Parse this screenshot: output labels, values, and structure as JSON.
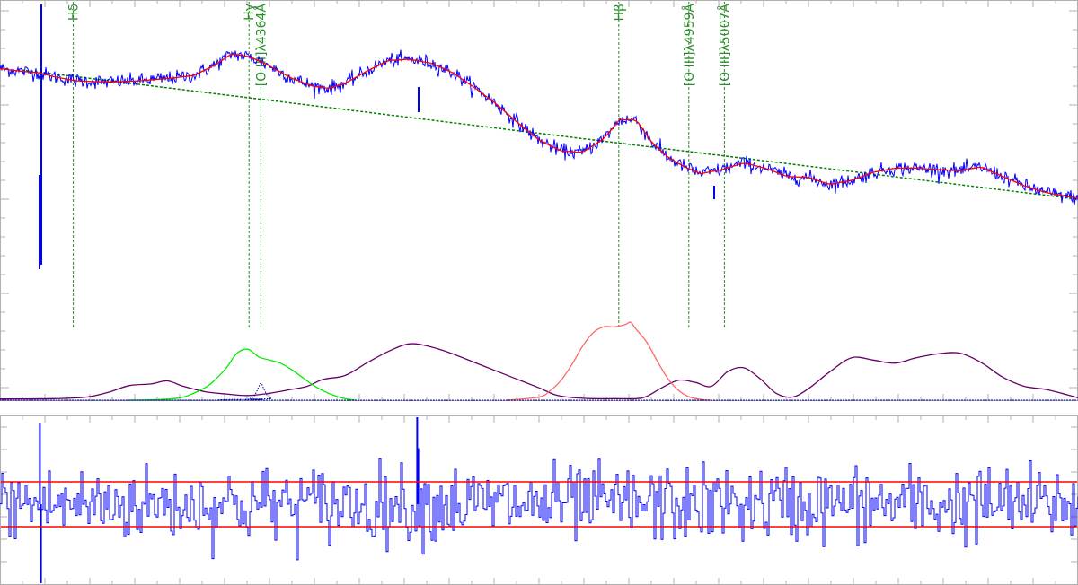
{
  "colors": {
    "observed": "#0000ff",
    "model": "#ff0000",
    "powerlaw": "#007f00",
    "annotation": "#2e8b2e",
    "feii": "#660066",
    "hgamma_broad": "#00ee00",
    "hbeta_broad": "#ff6666",
    "narrow": "#0000aa",
    "residual_band": "#ff0000",
    "axis": "#b0b0b0"
  },
  "chart_data": [
    {
      "type": "line",
      "panel": "spectrum",
      "grid": false,
      "x_range": [
        0,
        100
      ],
      "y_range": [
        0,
        100
      ],
      "annotations": [
        {
          "label": "Hδ",
          "x": 6.8
        },
        {
          "label": "Hγ",
          "x": 23.1
        },
        {
          "label": "[O III]λ4364Å",
          "x": 24.2
        },
        {
          "label": "Hβ",
          "x": 57.4
        },
        {
          "label": "[O III]λ4959Å",
          "x": 63.9
        },
        {
          "label": "[O III]λ5007Å",
          "x": 67.2
        }
      ],
      "series": [
        {
          "role": "observed_spectrum",
          "noise_amplitude": 2.2,
          "x": [
            0,
            2,
            3.6,
            5,
            7,
            10,
            13,
            16,
            18,
            20,
            21.5,
            23,
            24,
            25,
            27,
            29,
            30.5,
            32,
            34,
            36,
            38,
            40,
            42,
            44,
            46,
            48,
            50,
            52,
            54,
            56,
            57.5,
            59,
            60.5,
            62,
            63.5,
            65,
            67,
            69,
            71,
            73,
            75,
            77,
            79,
            81,
            83,
            85,
            87,
            89,
            91,
            93,
            95,
            97,
            99,
            100
          ],
          "y": [
            74.5,
            73.5,
            73,
            71.5,
            70,
            69.5,
            70,
            71,
            72,
            76,
            80,
            79,
            77.5,
            75.5,
            71,
            68,
            67.2,
            69,
            73.5,
            77.5,
            78,
            76.5,
            73,
            67.5,
            61.5,
            54.5,
            48,
            44,
            43.3,
            48.5,
            55.5,
            55.5,
            47,
            41.5,
            38,
            35.5,
            37,
            39.5,
            37.5,
            34.5,
            34,
            31.5,
            33,
            36,
            37.5,
            37.5,
            37,
            36.5,
            38,
            34.5,
            31,
            28.5,
            27,
            26.5
          ]
        },
        {
          "role": "model_fit",
          "x": [
            0,
            2,
            3.6,
            5,
            7,
            10,
            13,
            16,
            18,
            20,
            21.5,
            23,
            24,
            25,
            27,
            29,
            30.5,
            32,
            34,
            36,
            38,
            40,
            42,
            44,
            46,
            48,
            50,
            52,
            54,
            56,
            57.5,
            59,
            60.5,
            62,
            63.5,
            65,
            67,
            69,
            71,
            73,
            75,
            77,
            79,
            81,
            83,
            85,
            87,
            89,
            91,
            93,
            95,
            97,
            99,
            100
          ],
          "y": [
            74.5,
            73.5,
            73,
            71.5,
            70,
            69.5,
            70,
            71,
            72,
            76,
            80,
            79,
            77.5,
            75.5,
            71,
            68,
            67.2,
            69,
            73.5,
            77.5,
            78,
            76.5,
            73,
            67.5,
            61.5,
            54.5,
            48,
            44,
            43.3,
            48.5,
            55.5,
            55.5,
            47,
            41.5,
            38,
            35.5,
            37,
            39.5,
            37.5,
            34.5,
            34,
            31.5,
            33,
            36,
            37.5,
            37.5,
            37,
            36.5,
            38,
            34.5,
            31,
            28.5,
            27,
            26.5
          ]
        },
        {
          "role": "power_law_continuum",
          "x": [
            2,
            100
          ],
          "y": [
            74,
            26
          ]
        }
      ],
      "components": [
        {
          "role": "fe_ii_template",
          "x": [
            0,
            5,
            8,
            10,
            12,
            14,
            15.5,
            17,
            19,
            21,
            23,
            25,
            27,
            28.5,
            30,
            32,
            34,
            36,
            38,
            40,
            42,
            44,
            46,
            48,
            50,
            51.5,
            53,
            55,
            57,
            59,
            60,
            61.5,
            63,
            64.5,
            66,
            67.5,
            69,
            70.5,
            72,
            73.5,
            75,
            77,
            79,
            81,
            83,
            85,
            87,
            89,
            91,
            93,
            95,
            97,
            99,
            100
          ],
          "y": [
            1.5,
            2,
            4,
            10,
            19,
            21,
            25,
            18,
            11,
            8,
            6,
            9,
            14,
            18,
            27,
            32,
            48,
            63,
            73,
            69,
            60,
            49,
            38,
            27,
            16,
            7,
            3.5,
            2,
            2,
            2,
            5,
            17,
            26,
            23,
            18,
            37,
            42,
            28,
            9,
            4,
            15,
            37,
            55,
            52,
            48,
            55,
            60,
            61,
            49,
            30,
            18,
            14,
            7,
            3
          ]
        },
        {
          "role": "h_gamma_broad",
          "x": [
            12,
            15,
            17,
            19,
            20,
            21,
            22,
            23,
            24,
            25,
            26,
            27,
            28,
            29,
            30,
            31,
            32,
            33
          ],
          "y": [
            0,
            1,
            4,
            16,
            27,
            42,
            61,
            66,
            56,
            52,
            48,
            40,
            30,
            20,
            12,
            6,
            2,
            0
          ]
        },
        {
          "role": "h_beta_broad",
          "x": [
            47,
            50,
            51,
            52,
            53,
            54,
            55,
            56,
            57,
            58,
            58.5,
            59,
            60,
            61,
            62,
            63,
            64,
            65,
            66
          ],
          "y": [
            0,
            4,
            12,
            25,
            45,
            69,
            87,
            95,
            95,
            98,
            101,
            92,
            75,
            50,
            27,
            12,
            4,
            1,
            0
          ]
        },
        {
          "role": "narrow_lines",
          "x": [
            0,
            22.5,
            23.2,
            23.6,
            23.9,
            24.2,
            24.5,
            24.8,
            25.2,
            26,
            100
          ],
          "y": [
            0,
            0,
            2,
            6,
            14,
            22,
            14,
            6,
            2,
            0,
            0
          ]
        }
      ]
    },
    {
      "type": "line",
      "panel": "residuals",
      "grid": false,
      "x_range": [
        0,
        100
      ],
      "y_range": [
        -5,
        5
      ],
      "noise_sigma": 1,
      "bands": [
        1,
        -1
      ],
      "spikes": [
        {
          "x": 3.7,
          "y": 3.6
        },
        {
          "x": 3.8,
          "y": -3.6
        },
        {
          "x": 38.7,
          "y": 4.7
        },
        {
          "x": 38.8,
          "y": 2.5
        }
      ]
    }
  ]
}
